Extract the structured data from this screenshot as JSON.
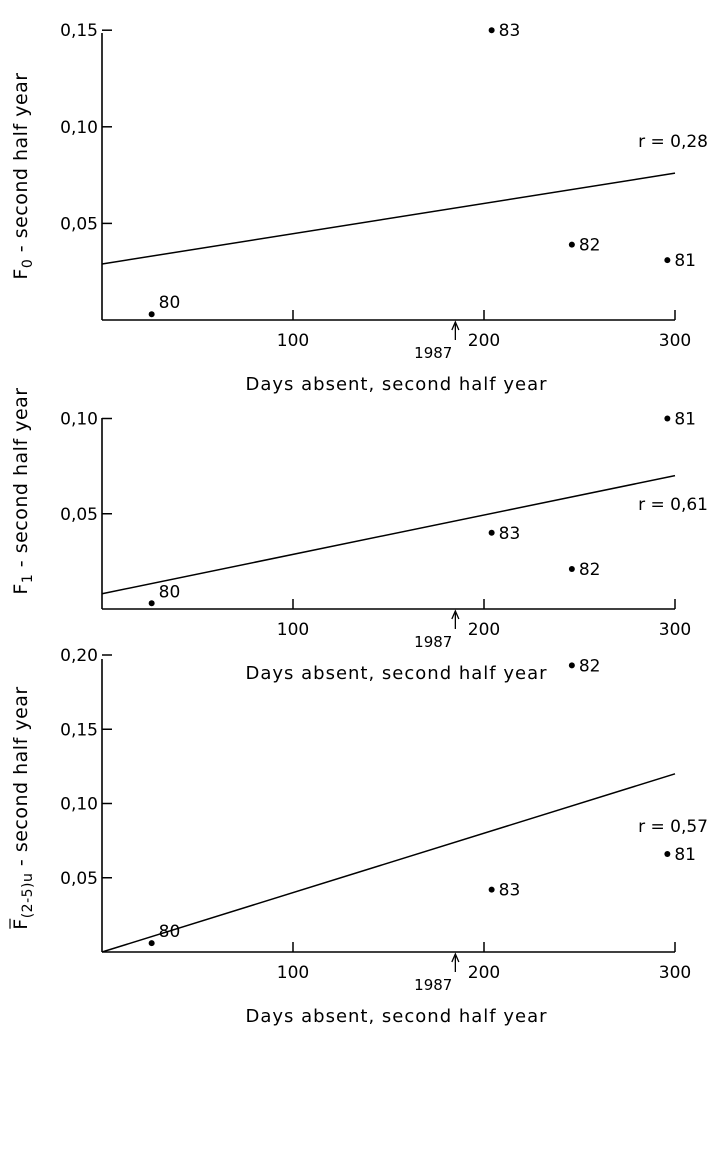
{
  "chart_data": [
    {
      "type": "scatter",
      "ylabel": "F0 - second half year",
      "ylabel_main": "F",
      "ylabel_sub": "0",
      "ylabel_rest": " - second half year",
      "xlabel": "Days absent, second half year",
      "xlim": [
        0,
        300
      ],
      "ylim": [
        0,
        0.15
      ],
      "xticks": [
        100,
        200,
        300
      ],
      "yticks": [
        0.05,
        0.1,
        0.15
      ],
      "ytick_labels": [
        "0.05",
        "0.10",
        "0.15"
      ],
      "points": [
        {
          "label": "80",
          "x": 26,
          "y": 0.003
        },
        {
          "label": "81",
          "x": 296,
          "y": 0.031
        },
        {
          "label": "82",
          "x": 246,
          "y": 0.039
        },
        {
          "label": "83",
          "x": 204,
          "y": 0.15
        }
      ],
      "fit_line": {
        "x": [
          0,
          300
        ],
        "y": [
          0.029,
          0.076
        ]
      },
      "r_label": "r = 0.28",
      "marker_year": "1987",
      "marker_x": 185,
      "grid": false
    },
    {
      "type": "scatter",
      "ylabel": "F1 - second half year",
      "ylabel_main": "F",
      "ylabel_sub": "1",
      "ylabel_rest": " - second half year",
      "xlabel": "Days absent, second half year",
      "xlim": [
        0,
        300
      ],
      "ylim": [
        0,
        0.1
      ],
      "xticks": [
        100,
        200,
        300
      ],
      "yticks": [
        0.05,
        0.1
      ],
      "ytick_labels": [
        "0.05",
        "0.10"
      ],
      "points": [
        {
          "label": "80",
          "x": 26,
          "y": 0.003
        },
        {
          "label": "81",
          "x": 296,
          "y": 0.1
        },
        {
          "label": "82",
          "x": 246,
          "y": 0.021
        },
        {
          "label": "83",
          "x": 204,
          "y": 0.04
        }
      ],
      "fit_line": {
        "x": [
          0,
          300
        ],
        "y": [
          0.008,
          0.07
        ]
      },
      "r_label": "r = 0.61",
      "marker_year": "1987",
      "marker_x": 185,
      "grid": false
    },
    {
      "type": "scatter",
      "ylabel": "F(2-5)u - second half year",
      "ylabel_main": "F",
      "ylabel_sub": "(2-5)u",
      "ylabel_rest": " - second half year",
      "xlabel": "Days absent, second half year",
      "xlim": [
        0,
        300
      ],
      "ylim": [
        0,
        0.2
      ],
      "xticks": [
        100,
        200,
        300
      ],
      "yticks": [
        0.05,
        0.1,
        0.15,
        0.2
      ],
      "ytick_labels": [
        "0.05",
        "0.10",
        "0.15",
        "0.20"
      ],
      "points": [
        {
          "label": "80",
          "x": 26,
          "y": 0.006
        },
        {
          "label": "81",
          "x": 296,
          "y": 0.066
        },
        {
          "label": "82",
          "x": 246,
          "y": 0.193
        },
        {
          "label": "83",
          "x": 204,
          "y": 0.042
        }
      ],
      "fit_line": {
        "x": [
          0,
          300
        ],
        "y": [
          0.0,
          0.12
        ]
      },
      "r_label": "r = 0.57",
      "marker_year": "1987",
      "marker_x": 185,
      "grid": false
    }
  ]
}
